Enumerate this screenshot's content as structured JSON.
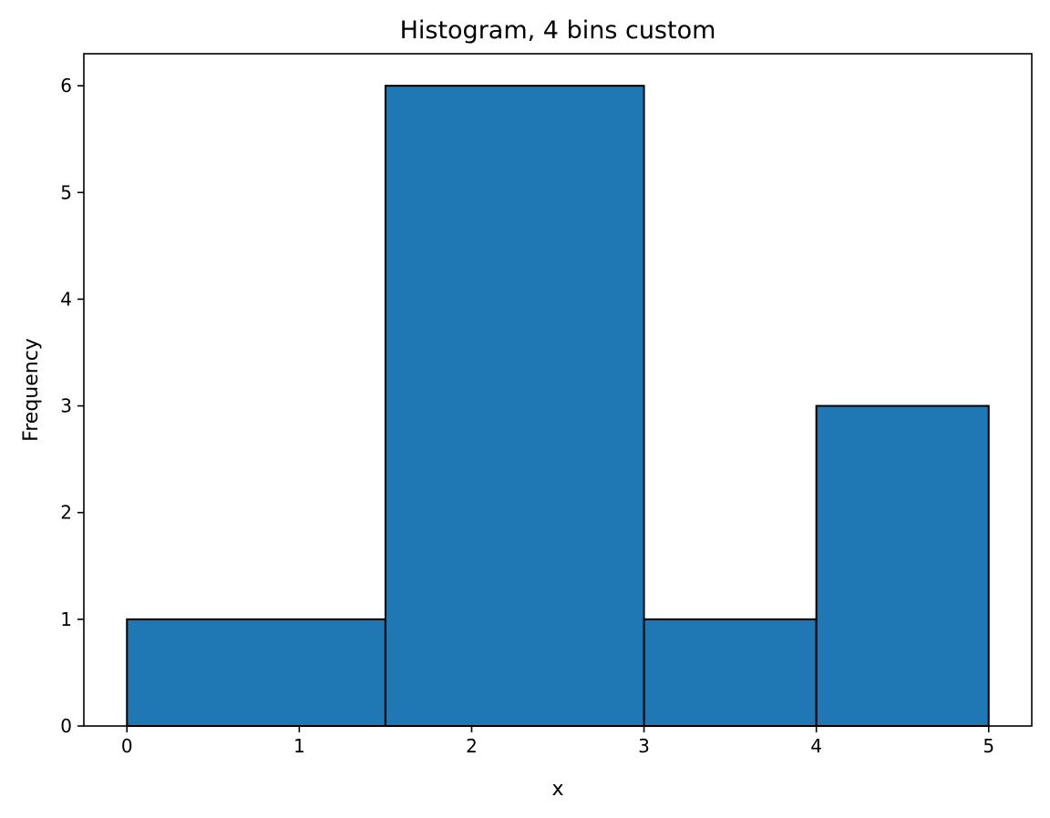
{
  "chart_data": {
    "type": "bar",
    "title": "Histogram, 4 bins custom",
    "xlabel": "x",
    "ylabel": "Frequency",
    "bins": [
      {
        "start": 0,
        "end": 1.5,
        "value": 1
      },
      {
        "start": 1.5,
        "end": 3,
        "value": 6
      },
      {
        "start": 3,
        "end": 4,
        "value": 1
      },
      {
        "start": 4,
        "end": 5,
        "value": 3
      }
    ],
    "xlim": [
      -0.25,
      5.25
    ],
    "ylim": [
      0,
      6.3
    ],
    "xticks": [
      0,
      1,
      2,
      3,
      4,
      5
    ],
    "yticks": [
      0,
      1,
      2,
      3,
      4,
      5,
      6
    ],
    "grid": false,
    "bar_color": "#1f77b4",
    "edge_color": "#000000"
  }
}
